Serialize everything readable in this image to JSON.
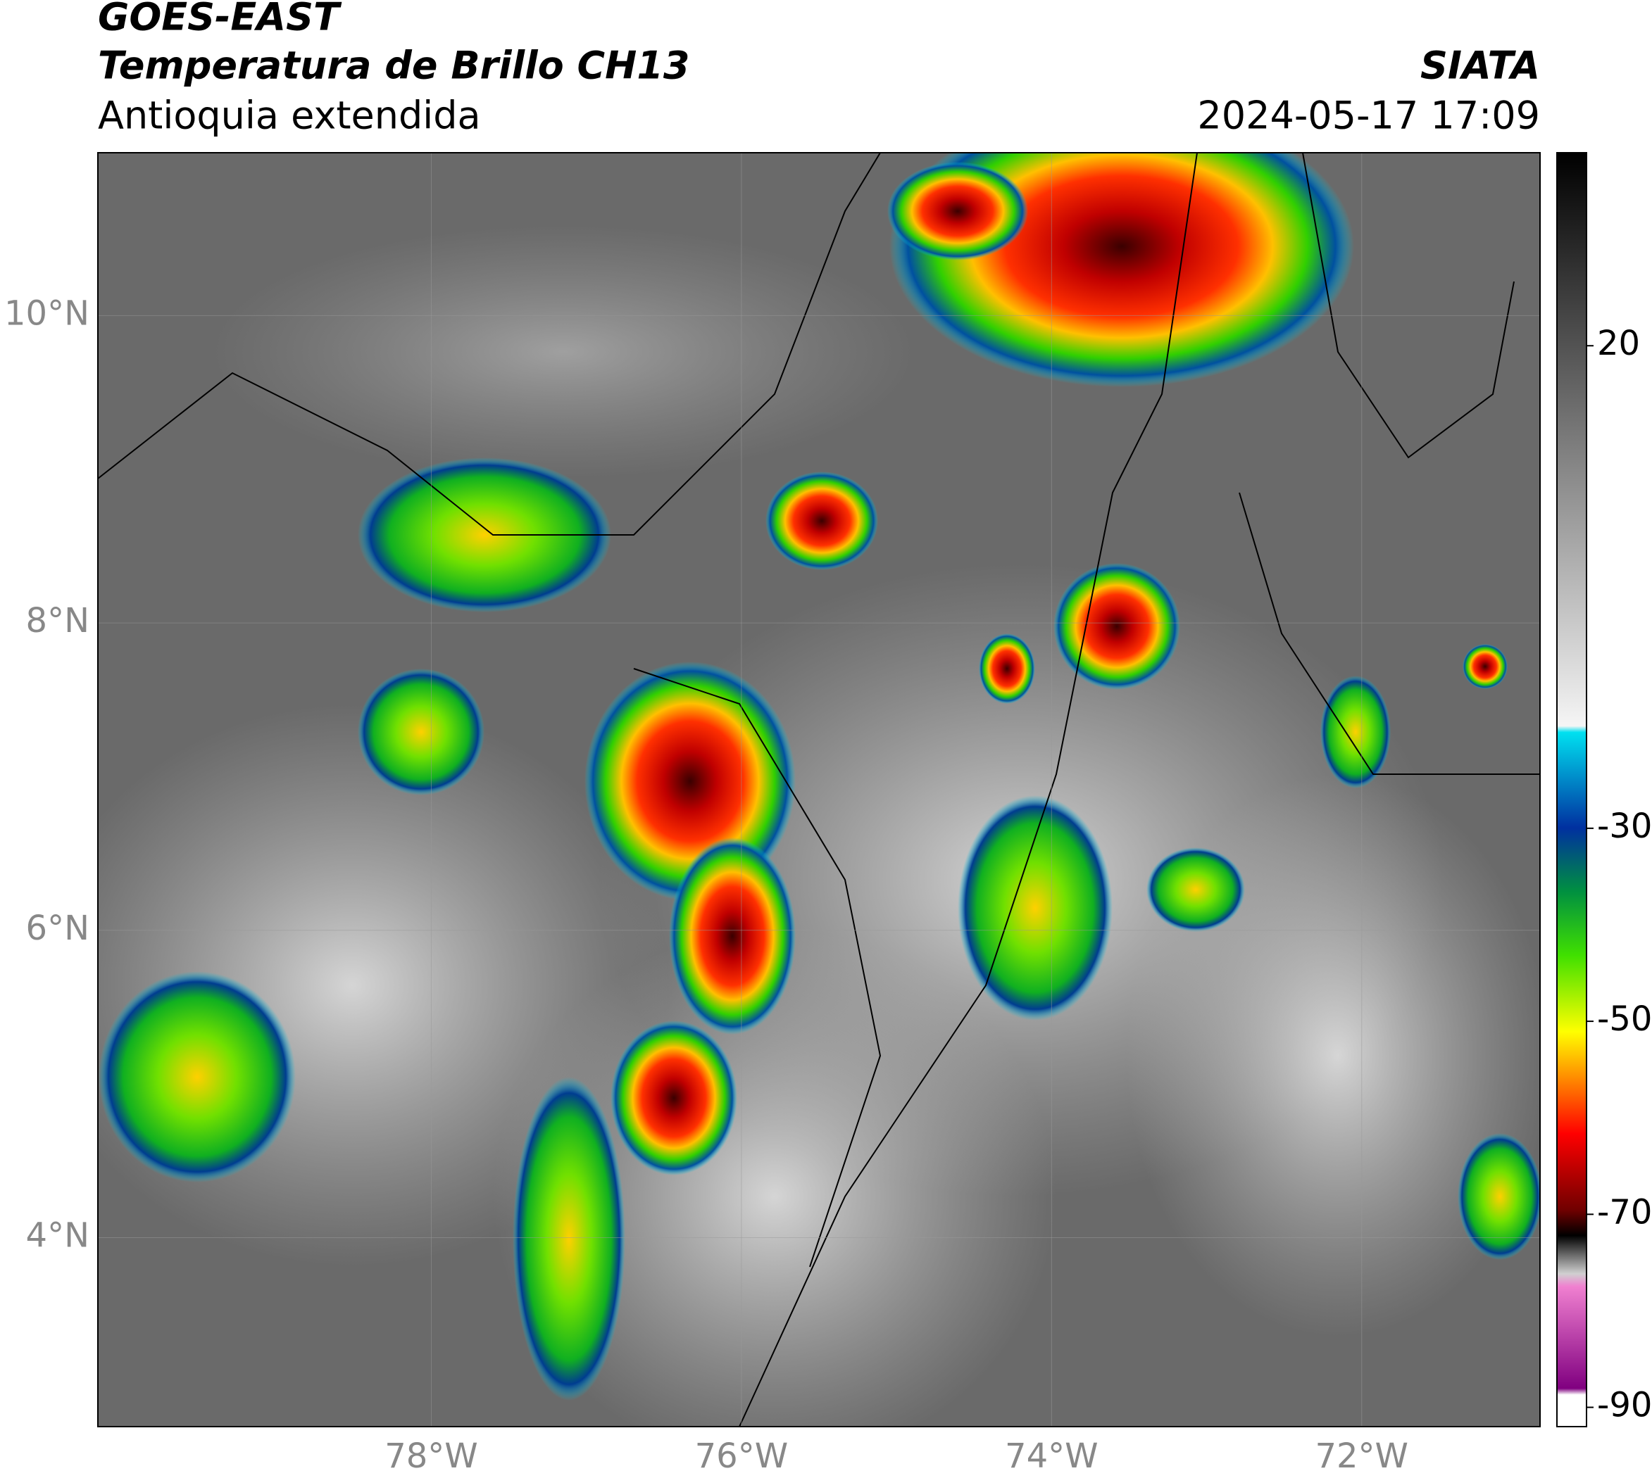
{
  "header": {
    "title": "GOES-EAST",
    "subtitle": "Temperatura de Brillo CH13",
    "region": "Antioquia extendida",
    "source": "SIATA",
    "datetime": "2024-05-17 17:09"
  },
  "map": {
    "xlim": [
      -80.15,
      -70.85
    ],
    "ylim": [
      2.77,
      11.06
    ],
    "xticks": [
      {
        "value": -78,
        "label": "78°W"
      },
      {
        "value": -76,
        "label": "76°W"
      },
      {
        "value": -74,
        "label": "74°W"
      },
      {
        "value": -72,
        "label": "72°W"
      }
    ],
    "yticks": [
      {
        "value": 10,
        "label": "10°N"
      },
      {
        "value": 8,
        "label": "8°N"
      },
      {
        "value": 6,
        "label": "6°N"
      },
      {
        "value": 4,
        "label": "4°N"
      }
    ],
    "grid": true
  },
  "colorbar": {
    "lim": [
      -92,
      40
    ],
    "ticks": [
      20,
      -30,
      -50,
      -70,
      -90
    ]
  }
}
